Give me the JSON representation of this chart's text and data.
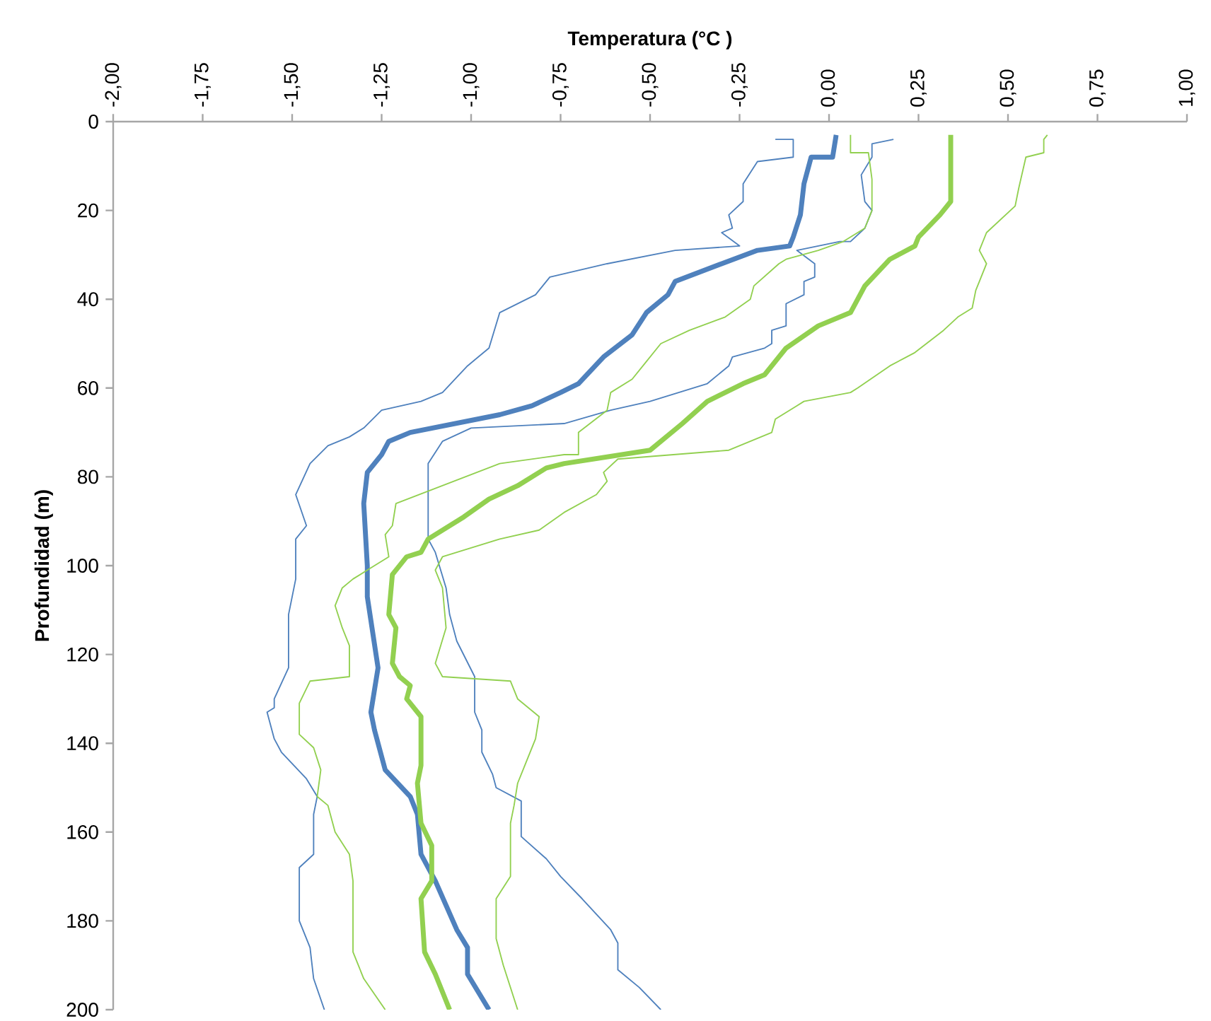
{
  "chart_data": {
    "type": "line",
    "xlabel": "Temperatura (°C )",
    "ylabel": "Profundidad (m)",
    "xlim": [
      -2,
      1
    ],
    "xticks": [
      {
        "value": -2,
        "label": "-2,00"
      },
      {
        "value": -1.75,
        "label": "-1,75"
      },
      {
        "value": -1.5,
        "label": "-1,50"
      },
      {
        "value": -1.25,
        "label": "-1,25"
      },
      {
        "value": -1,
        "label": "-1,00"
      },
      {
        "value": -0.75,
        "label": "-0,75"
      },
      {
        "value": -0.5,
        "label": "-0,50"
      },
      {
        "value": -0.25,
        "label": "-0,25"
      },
      {
        "value": 0,
        "label": "0,00"
      },
      {
        "value": 0.25,
        "label": "0,25"
      },
      {
        "value": 0.5,
        "label": "0,50"
      },
      {
        "value": 0.75,
        "label": "0,75"
      },
      {
        "value": 1,
        "label": "1,00"
      }
    ],
    "ylim": [
      200,
      0
    ],
    "yticks": [
      0,
      20,
      40,
      60,
      80,
      100,
      120,
      140,
      160,
      180,
      200
    ],
    "grid": false,
    "legend": false,
    "marker": "none",
    "line_style": "solid",
    "series": [
      {
        "color": "#4f81bd",
        "x": [
          0.02,
          0.01,
          -0.05,
          -0.07,
          -0.08,
          -0.1,
          -0.11,
          -0.2,
          -0.3,
          -0.43,
          -0.45,
          -0.51,
          -0.55,
          -0.63,
          -0.7,
          -0.75,
          -0.83,
          -0.92,
          -1.17,
          -1.23,
          -1.25,
          -1.29,
          -1.3,
          -1.29,
          -1.29,
          -1.26,
          -1.28,
          -1.27,
          -1.24,
          -1.17,
          -1.15,
          -1.14,
          -1.1,
          -1.04,
          -1.01,
          -1.01,
          -0.95
        ],
        "values": [
          3,
          8,
          8,
          14,
          21,
          26,
          28,
          29,
          32,
          36,
          39,
          43,
          48,
          53,
          59,
          61,
          64,
          66,
          70,
          72,
          75,
          79,
          86,
          100,
          107,
          123,
          133,
          137,
          146,
          152,
          156,
          165,
          171,
          182,
          186,
          192,
          200
        ]
      },
      {
        "color": "#4f81bd",
        "x": [
          -0.15,
          -0.1,
          -0.1,
          -0.2,
          -0.24,
          -0.24,
          -0.28,
          -0.27,
          -0.3,
          -0.25,
          -0.43,
          -0.62,
          -0.78,
          -0.82,
          -0.92,
          -0.95,
          -1.01,
          -1.08,
          -1.14,
          -1.25,
          -1.3,
          -1.34,
          -1.4,
          -1.45,
          -1.49,
          -1.46,
          -1.49,
          -1.49,
          -1.51,
          -1.51,
          -1.55,
          -1.55,
          -1.57,
          -1.55,
          -1.53,
          -1.46,
          -1.43,
          -1.44,
          -1.44,
          -1.48,
          -1.48,
          -1.45,
          -1.44,
          -1.41
        ],
        "values": [
          4,
          4,
          8,
          9,
          14,
          18,
          21,
          24,
          25,
          28,
          29,
          32,
          35,
          39,
          43,
          51,
          55,
          61,
          63,
          65,
          69,
          71,
          73,
          77,
          84,
          91,
          94,
          103,
          111,
          123,
          130,
          132,
          133,
          139,
          142,
          148,
          152,
          156,
          165,
          168,
          180,
          186,
          193,
          200
        ]
      },
      {
        "color": "#4f81bd",
        "x": [
          0.18,
          0.12,
          0.12,
          0.09,
          0.1,
          0.12,
          0.1,
          0.06,
          0.03,
          -0.09,
          -0.04,
          -0.04,
          -0.07,
          -0.07,
          -0.12,
          -0.12,
          -0.16,
          -0.16,
          -0.18,
          -0.27,
          -0.28,
          -0.34,
          -0.42,
          -0.5,
          -0.61,
          -0.74,
          -1.0,
          -1.08,
          -1.12,
          -1.12,
          -1.1,
          -1.07,
          -1.06,
          -1.04,
          -0.99,
          -0.99,
          -0.97,
          -0.97,
          -0.94,
          -0.93,
          -0.86,
          -0.86,
          -0.79,
          -0.75,
          -0.69,
          -0.61,
          -0.59,
          -0.59,
          -0.53,
          -0.47
        ],
        "values": [
          4,
          5,
          8,
          12,
          18,
          20,
          24,
          27,
          27,
          29,
          32,
          35,
          36,
          39,
          41,
          46,
          47,
          50,
          51,
          53,
          55,
          59,
          61,
          63,
          65,
          68,
          69,
          72,
          77,
          94,
          97,
          105,
          111,
          117,
          125,
          133,
          137,
          142,
          147,
          150,
          153,
          161,
          166,
          170,
          175,
          182,
          185,
          191,
          195,
          200
        ]
      },
      {
        "color": "#92d050",
        "x": [
          0.34,
          0.34,
          0.31,
          0.25,
          0.24,
          0.17,
          0.1,
          0.06,
          -0.03,
          -0.12,
          -0.18,
          -0.24,
          -0.34,
          -0.41,
          -0.5,
          -0.74,
          -0.79,
          -0.87,
          -0.95,
          -1.02,
          -1.12,
          -1.14,
          -1.18,
          -1.22,
          -1.23,
          -1.21,
          -1.22,
          -1.2,
          -1.17,
          -1.18,
          -1.14,
          -1.14,
          -1.15,
          -1.14,
          -1.11,
          -1.11,
          -1.14,
          -1.13,
          -1.1,
          -1.06
        ],
        "values": [
          3,
          18,
          21,
          26,
          28,
          31,
          37,
          43,
          46,
          51,
          57,
          59,
          63,
          68,
          74,
          77,
          78,
          82,
          85,
          89,
          94,
          97,
          98,
          102,
          111,
          114,
          122,
          125,
          127,
          130,
          134,
          145,
          149,
          158,
          163,
          171,
          175,
          187,
          192,
          200
        ]
      },
      {
        "color": "#92d050",
        "x": [
          0.06,
          0.06,
          0.11,
          0.12,
          0.12,
          0.1,
          0.06,
          0.04,
          -0.03,
          -0.12,
          -0.14,
          -0.21,
          -0.22,
          -0.29,
          -0.39,
          -0.47,
          -0.51,
          -0.55,
          -0.61,
          -0.62,
          -0.7,
          -0.7,
          -0.74,
          -0.92,
          -1.21,
          -1.22,
          -1.24,
          -1.23,
          -1.29,
          -1.33,
          -1.36,
          -1.38,
          -1.36,
          -1.34,
          -1.34,
          -1.45,
          -1.48,
          -1.48,
          -1.44,
          -1.42,
          -1.43,
          -1.4,
          -1.38,
          -1.34,
          -1.33,
          -1.33,
          -1.3,
          -1.24
        ],
        "values": [
          3,
          7,
          7,
          13,
          20,
          24,
          26,
          27,
          29,
          31,
          32,
          37,
          40,
          44,
          47,
          50,
          54,
          58,
          61,
          65,
          70,
          75,
          75,
          77,
          86,
          91,
          93,
          98,
          101,
          103,
          105,
          109,
          114,
          118,
          125,
          126,
          131,
          138,
          141,
          146,
          152,
          154,
          160,
          165,
          171,
          187,
          193,
          200
        ]
      },
      {
        "color": "#92d050",
        "x": [
          0.61,
          0.6,
          0.6,
          0.55,
          0.53,
          0.52,
          0.48,
          0.44,
          0.42,
          0.44,
          0.42,
          0.41,
          0.4,
          0.36,
          0.32,
          0.24,
          0.17,
          0.08,
          0.06,
          -0.07,
          -0.09,
          -0.15,
          -0.16,
          -0.28,
          -0.59,
          -0.63,
          -0.62,
          -0.65,
          -0.74,
          -0.81,
          -0.92,
          -1.08,
          -1.1,
          -1.08,
          -1.07,
          -1.1,
          -1.08,
          -0.89,
          -0.87,
          -0.81,
          -0.82,
          -0.85,
          -0.87,
          -0.88,
          -0.89,
          -0.89,
          -0.93,
          -0.93,
          -0.91,
          -0.87
        ],
        "values": [
          3,
          4,
          7,
          8,
          15,
          19,
          22,
          25,
          29,
          32,
          36,
          38,
          42,
          44,
          47,
          52,
          55,
          60,
          61,
          63,
          64,
          67,
          70,
          74,
          76,
          79,
          81,
          84,
          88,
          92,
          94,
          98,
          101,
          105,
          114,
          122,
          125,
          126,
          130,
          134,
          139,
          145,
          149,
          154,
          158,
          170,
          175,
          184,
          190,
          200
        ]
      }
    ]
  }
}
